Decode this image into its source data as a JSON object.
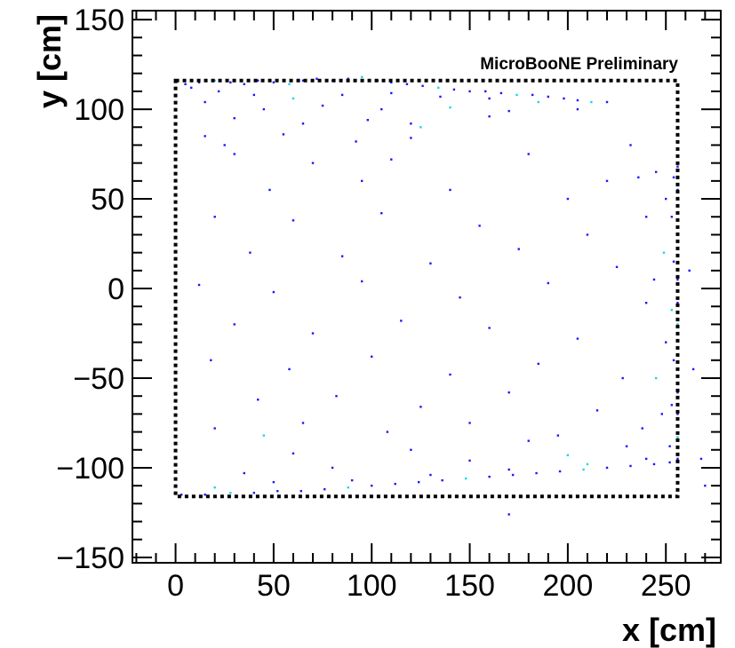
{
  "chart_data": {
    "type": "scatter",
    "title": "",
    "xlabel": "x [cm]",
    "ylabel": "y [cm]",
    "xlim": [
      -22,
      278
    ],
    "ylim": [
      -153,
      155
    ],
    "x_ticks": [
      0,
      50,
      100,
      150,
      200,
      250
    ],
    "y_ticks": [
      -150,
      -100,
      -50,
      0,
      50,
      100,
      150
    ],
    "x_tick_labels": [
      "0",
      "50",
      "100",
      "150",
      "200",
      "250"
    ],
    "y_tick_labels": [
      "−150",
      "−100",
      "−50",
      "0",
      "50",
      "100",
      "150"
    ],
    "grid": false,
    "annotation": "MicroBooNE Preliminary",
    "active_volume_box": {
      "x": [
        0,
        256
      ],
      "y": [
        -116,
        116
      ],
      "style": "dotted"
    },
    "point_color": "#1a1aff",
    "dense_color": "#18d6e8",
    "series": [
      {
        "points": [
          [
            5,
            114
          ],
          [
            12,
            115
          ],
          [
            20,
            116
          ],
          [
            28,
            115
          ],
          [
            35,
            114
          ],
          [
            42,
            116
          ],
          [
            50,
            115
          ],
          [
            58,
            114
          ],
          [
            65,
            116
          ],
          [
            72,
            117
          ],
          [
            80,
            116
          ],
          [
            88,
            117
          ],
          [
            95,
            118
          ],
          [
            103,
            116
          ],
          [
            110,
            115
          ],
          [
            118,
            114
          ],
          [
            126,
            113
          ],
          [
            134,
            112
          ],
          [
            142,
            111
          ],
          [
            150,
            110
          ],
          [
            158,
            110
          ],
          [
            166,
            109
          ],
          [
            174,
            108
          ],
          [
            182,
            108
          ],
          [
            190,
            107
          ],
          [
            198,
            106
          ],
          [
            205,
            105
          ],
          [
            212,
            104
          ],
          [
            220,
            104
          ],
          [
            8,
            112
          ],
          [
            22,
            110
          ],
          [
            40,
            108
          ],
          [
            60,
            106
          ],
          [
            85,
            108
          ],
          [
            110,
            109
          ],
          [
            135,
            107
          ],
          [
            160,
            106
          ],
          [
            185,
            104
          ],
          [
            15,
            104
          ],
          [
            45,
            100
          ],
          [
            75,
            102
          ],
          [
            105,
            100
          ],
          [
            140,
            101
          ],
          [
            170,
            99
          ],
          [
            30,
            95
          ],
          [
            65,
            92
          ],
          [
            98,
            94
          ],
          [
            125,
            90
          ],
          [
            55,
            86
          ],
          [
            92,
            82
          ],
          [
            25,
            80
          ],
          [
            120,
            84
          ]
        ]
      },
      {
        "points": [
          [
            3,
            -115
          ],
          [
            15,
            -115
          ],
          [
            28,
            -114
          ],
          [
            40,
            -114
          ],
          [
            52,
            -113
          ],
          [
            64,
            -113
          ],
          [
            76,
            -112
          ],
          [
            88,
            -111
          ],
          [
            100,
            -110
          ],
          [
            112,
            -109
          ],
          [
            124,
            -108
          ],
          [
            136,
            -107
          ],
          [
            148,
            -106
          ],
          [
            160,
            -105
          ],
          [
            172,
            -104
          ],
          [
            184,
            -103
          ],
          [
            196,
            -102
          ],
          [
            208,
            -101
          ],
          [
            220,
            -100
          ],
          [
            232,
            -99
          ],
          [
            244,
            -98
          ],
          [
            252,
            -97
          ],
          [
            20,
            -111
          ],
          [
            50,
            -108
          ],
          [
            90,
            -107
          ],
          [
            130,
            -104
          ],
          [
            170,
            -101
          ],
          [
            210,
            -98
          ],
          [
            240,
            -95
          ],
          [
            35,
            -103
          ],
          [
            80,
            -100
          ],
          [
            150,
            -96
          ],
          [
            200,
            -93
          ],
          [
            60,
            -92
          ],
          [
            120,
            -90
          ],
          [
            230,
            -88
          ],
          [
            180,
            -85
          ],
          [
            45,
            -82
          ]
        ]
      },
      {
        "points": [
          [
            256,
            68
          ],
          [
            256,
            55
          ],
          [
            256,
            42
          ],
          [
            256,
            30
          ],
          [
            256,
            18
          ],
          [
            256,
            5
          ],
          [
            256,
            -8
          ],
          [
            256,
            -20
          ],
          [
            256,
            -33
          ],
          [
            256,
            -45
          ],
          [
            256,
            -58
          ],
          [
            256,
            -70
          ],
          [
            256,
            -83
          ],
          [
            256,
            -95
          ],
          [
            254,
            62
          ],
          [
            253,
            40
          ],
          [
            254,
            15
          ],
          [
            253,
            -12
          ],
          [
            254,
            -40
          ],
          [
            253,
            -65
          ],
          [
            252,
            -88
          ],
          [
            250,
            50
          ],
          [
            249,
            20
          ],
          [
            250,
            -30
          ],
          [
            248,
            -70
          ],
          [
            245,
            65
          ],
          [
            244,
            5
          ],
          [
            245,
            -50
          ],
          [
            262,
            10
          ],
          [
            264,
            -45
          ],
          [
            268,
            -95
          ],
          [
            270,
            -110
          ]
        ]
      },
      {
        "points": [
          [
            205,
            100
          ],
          [
            160,
            96
          ],
          [
            120,
            92
          ],
          [
            232,
            80
          ],
          [
            236,
            62
          ],
          [
            15,
            85
          ],
          [
            30,
            75
          ],
          [
            70,
            70
          ],
          [
            110,
            72
          ],
          [
            180,
            75
          ],
          [
            220,
            60
          ],
          [
            48,
            55
          ],
          [
            95,
            60
          ],
          [
            140,
            55
          ],
          [
            200,
            50
          ],
          [
            240,
            40
          ],
          [
            20,
            40
          ],
          [
            60,
            38
          ],
          [
            105,
            42
          ],
          [
            155,
            35
          ],
          [
            210,
            30
          ],
          [
            38,
            20
          ],
          [
            85,
            18
          ],
          [
            130,
            14
          ],
          [
            175,
            22
          ],
          [
            225,
            12
          ],
          [
            12,
            2
          ],
          [
            50,
            -2
          ],
          [
            95,
            4
          ],
          [
            145,
            -5
          ],
          [
            190,
            3
          ],
          [
            240,
            -8
          ],
          [
            30,
            -20
          ],
          [
            70,
            -25
          ],
          [
            115,
            -18
          ],
          [
            160,
            -22
          ],
          [
            205,
            -28
          ],
          [
            18,
            -40
          ],
          [
            58,
            -45
          ],
          [
            100,
            -38
          ],
          [
            140,
            -48
          ],
          [
            185,
            -42
          ],
          [
            228,
            -50
          ],
          [
            42,
            -62
          ],
          [
            82,
            -60
          ],
          [
            125,
            -66
          ],
          [
            170,
            -58
          ],
          [
            215,
            -68
          ],
          [
            20,
            -78
          ],
          [
            65,
            -75
          ],
          [
            108,
            -80
          ],
          [
            150,
            -75
          ],
          [
            195,
            -82
          ],
          [
            238,
            -78
          ],
          [
            170,
            -126
          ]
        ]
      }
    ]
  }
}
